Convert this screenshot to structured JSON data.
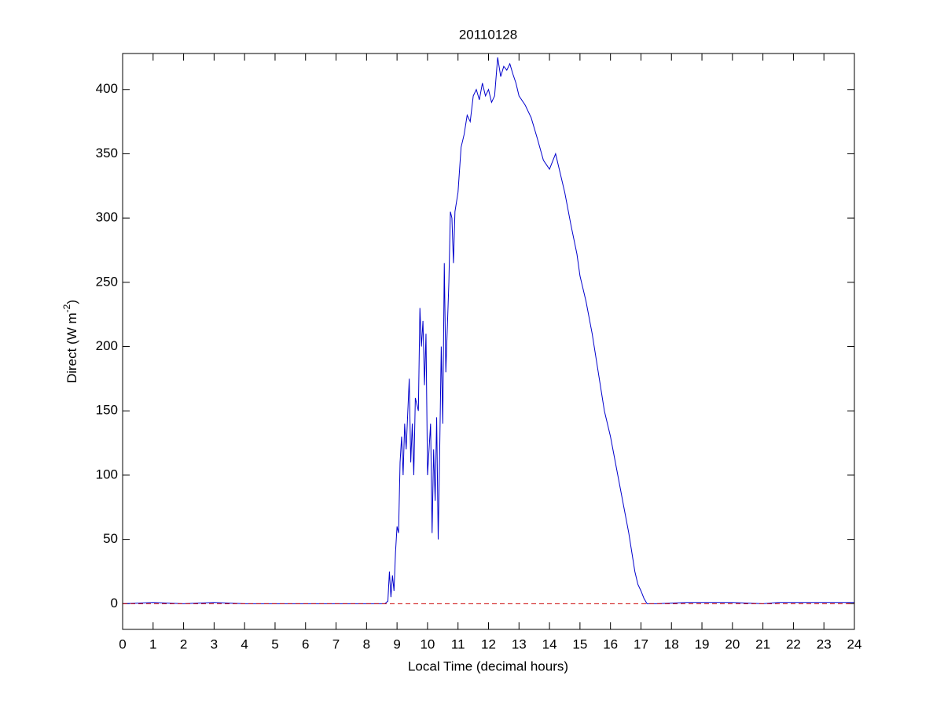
{
  "chart_data": {
    "type": "line",
    "title": "20110128",
    "xlabel": "Local Time (decimal hours)",
    "ylabel": {
      "text": "Direct (W m",
      "superscript": "-2",
      "suffix": ")"
    },
    "xlim": [
      0,
      24
    ],
    "ylim": [
      -20,
      428
    ],
    "xticks": [
      0,
      1,
      2,
      3,
      4,
      5,
      6,
      7,
      8,
      9,
      10,
      11,
      12,
      13,
      14,
      15,
      16,
      17,
      18,
      19,
      20,
      21,
      22,
      23,
      24
    ],
    "yticks": [
      0,
      50,
      100,
      150,
      200,
      250,
      300,
      350,
      400
    ],
    "grid": false,
    "series": [
      {
        "color": "#0000cc",
        "dash": false,
        "x": [
          0,
          1,
          2,
          3,
          4,
          5,
          6,
          7,
          8,
          8.5,
          8.6,
          8.7,
          8.75,
          8.8,
          8.85,
          8.9,
          8.95,
          9.0,
          9.05,
          9.1,
          9.15,
          9.2,
          9.25,
          9.3,
          9.4,
          9.45,
          9.5,
          9.55,
          9.6,
          9.7,
          9.75,
          9.8,
          9.85,
          9.9,
          9.95,
          10.0,
          10.1,
          10.15,
          10.2,
          10.25,
          10.3,
          10.35,
          10.4,
          10.45,
          10.5,
          10.55,
          10.6,
          10.65,
          10.7,
          10.75,
          10.8,
          10.85,
          10.9,
          11.0,
          11.1,
          11.2,
          11.3,
          11.4,
          11.5,
          11.6,
          11.7,
          11.8,
          11.9,
          12.0,
          12.1,
          12.2,
          12.3,
          12.4,
          12.5,
          12.6,
          12.7,
          12.8,
          12.9,
          13.0,
          13.2,
          13.4,
          13.6,
          13.8,
          14.0,
          14.2,
          14.3,
          14.5,
          14.7,
          14.9,
          15.0,
          15.2,
          15.4,
          15.6,
          15.8,
          16.0,
          16.2,
          16.4,
          16.6,
          16.8,
          16.9,
          17.0,
          17.1,
          17.2,
          17.5,
          18.5,
          19,
          20,
          21,
          21.5,
          22,
          23,
          24
        ],
        "values": [
          0,
          1,
          0,
          1,
          0,
          0,
          0,
          0,
          0,
          0,
          0,
          2,
          25,
          5,
          22,
          10,
          40,
          60,
          55,
          110,
          130,
          100,
          140,
          120,
          175,
          110,
          140,
          100,
          160,
          150,
          230,
          200,
          220,
          170,
          210,
          100,
          140,
          55,
          120,
          80,
          145,
          50,
          120,
          200,
          140,
          265,
          180,
          215,
          250,
          305,
          300,
          265,
          305,
          320,
          355,
          365,
          380,
          375,
          395,
          400,
          392,
          405,
          395,
          400,
          390,
          395,
          425,
          410,
          418,
          415,
          420,
          412,
          405,
          395,
          388,
          378,
          362,
          345,
          338,
          350,
          340,
          320,
          295,
          272,
          255,
          235,
          210,
          180,
          150,
          130,
          105,
          80,
          55,
          25,
          15,
          10,
          4,
          0,
          0,
          1,
          1,
          1,
          0,
          1,
          1,
          1,
          1
        ]
      },
      {
        "color": "#cc0000",
        "dash": true,
        "x": [
          0,
          24
        ],
        "values": [
          0,
          0
        ]
      }
    ]
  }
}
